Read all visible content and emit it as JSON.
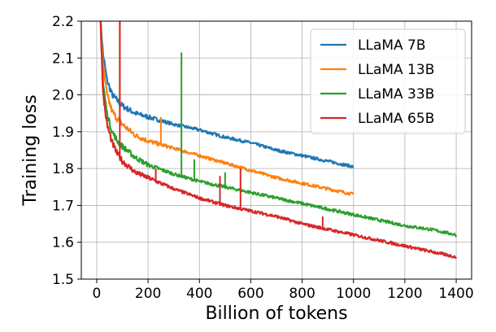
{
  "chart_data": {
    "type": "line",
    "xlabel": "Billion of tokens",
    "ylabel": "Training loss",
    "xlim": [
      -60,
      1460
    ],
    "ylim": [
      1.5,
      2.2
    ],
    "xticks": [
      0,
      200,
      400,
      600,
      800,
      1000,
      1200,
      1400
    ],
    "yticks": [
      1.5,
      1.6,
      1.7,
      1.8,
      1.9,
      2.0,
      2.1,
      2.2
    ],
    "grid": true,
    "legend_position": "top-right",
    "series": [
      {
        "name": "LLaMA 7B",
        "color": "#1f77b4",
        "x": [
          15,
          25,
          40,
          60,
          80,
          100,
          150,
          200,
          300,
          400,
          500,
          600,
          700,
          800,
          900,
          1000
        ],
        "y": [
          2.2,
          2.11,
          2.04,
          2.0,
          1.985,
          1.97,
          1.95,
          1.94,
          1.92,
          1.905,
          1.885,
          1.87,
          1.85,
          1.835,
          1.82,
          1.805
        ],
        "spikes": []
      },
      {
        "name": "LLaMA 13B",
        "color": "#ff7f0e",
        "x": [
          15,
          25,
          40,
          60,
          80,
          100,
          150,
          200,
          300,
          400,
          500,
          600,
          700,
          800,
          900,
          1000
        ],
        "y": [
          2.2,
          2.08,
          2.0,
          1.955,
          1.935,
          1.92,
          1.89,
          1.875,
          1.855,
          1.835,
          1.815,
          1.795,
          1.775,
          1.76,
          1.745,
          1.73
        ],
        "spikes": [
          {
            "x": 90,
            "y": 2.2
          },
          {
            "x": 250,
            "y": 1.94
          }
        ]
      },
      {
        "name": "LLaMA 33B",
        "color": "#2ca02c",
        "x": [
          15,
          25,
          40,
          60,
          80,
          100,
          150,
          200,
          300,
          400,
          500,
          600,
          700,
          800,
          900,
          1000,
          1100,
          1200,
          1300,
          1400
        ],
        "y": [
          2.2,
          2.03,
          1.95,
          1.9,
          1.875,
          1.86,
          1.83,
          1.81,
          1.785,
          1.765,
          1.75,
          1.735,
          1.72,
          1.705,
          1.69,
          1.675,
          1.66,
          1.645,
          1.635,
          1.62
        ],
        "spikes": [
          {
            "x": 330,
            "y": 2.115
          },
          {
            "x": 380,
            "y": 1.825
          },
          {
            "x": 500,
            "y": 1.79
          }
        ]
      },
      {
        "name": "LLaMA 65B",
        "color": "#d62728",
        "x": [
          15,
          25,
          40,
          60,
          80,
          100,
          150,
          200,
          300,
          400,
          500,
          600,
          700,
          800,
          900,
          1000,
          1100,
          1200,
          1300,
          1400
        ],
        "y": [
          2.2,
          2.0,
          1.92,
          1.87,
          1.84,
          1.82,
          1.79,
          1.775,
          1.745,
          1.72,
          1.7,
          1.685,
          1.67,
          1.65,
          1.635,
          1.62,
          1.605,
          1.59,
          1.575,
          1.56
        ],
        "spikes": [
          {
            "x": 90,
            "y": 2.2
          },
          {
            "x": 230,
            "y": 1.8
          },
          {
            "x": 480,
            "y": 1.78
          },
          {
            "x": 560,
            "y": 1.8
          },
          {
            "x": 880,
            "y": 1.67
          }
        ]
      }
    ]
  }
}
